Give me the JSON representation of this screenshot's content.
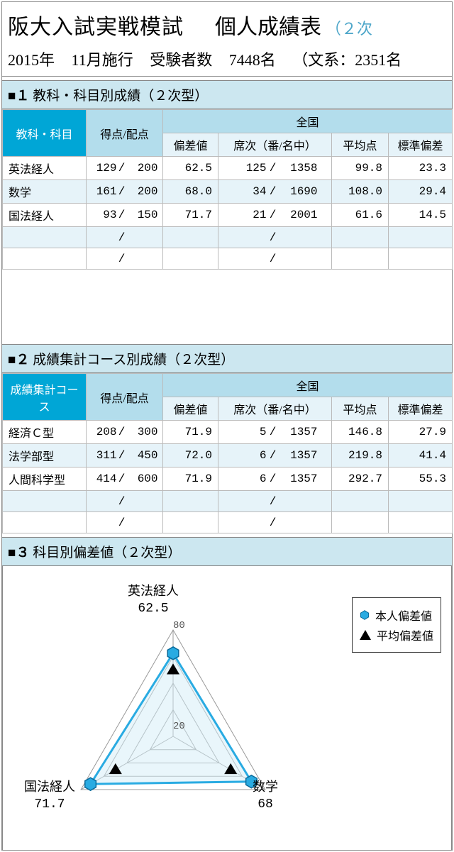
{
  "header": {
    "title_main": "阪大入試実戦模試",
    "title_sub": "個人成績表",
    "title_tail": "（２次",
    "year": "2015年",
    "month": "11月施行",
    "examinees_label": "受験者数",
    "examinees_count": "7448名",
    "breakdown": "（文系：2351名"
  },
  "section1": {
    "number": "■１",
    "title": "教科・科目別成績（２次型）",
    "headers": {
      "subject": "教科・科目",
      "score": "得点/配点",
      "national": "全国",
      "dev": "偏差値",
      "rank": "席次（番/名中）",
      "avg": "平均点",
      "sd": "標準偏差"
    },
    "rows": [
      {
        "subj": "英法経人",
        "score": "129",
        "full": "200",
        "dev": "62.5",
        "rank": "125",
        "total": "1358",
        "avg": "99.8",
        "sd": "23.3"
      },
      {
        "subj": "数学",
        "score": "161",
        "full": "200",
        "dev": "68.0",
        "rank": "34",
        "total": "1690",
        "avg": "108.0",
        "sd": "29.4"
      },
      {
        "subj": "国法経人",
        "score": "93",
        "full": "150",
        "dev": "71.7",
        "rank": "21",
        "total": "2001",
        "avg": "61.6",
        "sd": "14.5"
      }
    ]
  },
  "section2": {
    "number": "■２",
    "title": "成績集計コース別成績（２次型）",
    "headers": {
      "course": "成績集計コース",
      "score": "得点/配点",
      "national": "全国",
      "dev": "偏差値",
      "rank": "席次（番/名中）",
      "avg": "平均点",
      "sd": "標準偏差"
    },
    "rows": [
      {
        "subj": "経済Ｃ型",
        "score": "208",
        "full": "300",
        "dev": "71.9",
        "rank": "5",
        "total": "1357",
        "avg": "146.8",
        "sd": "27.9"
      },
      {
        "subj": "法学部型",
        "score": "311",
        "full": "450",
        "dev": "72.0",
        "rank": "6",
        "total": "1357",
        "avg": "219.8",
        "sd": "41.4"
      },
      {
        "subj": "人間科学型",
        "score": "414",
        "full": "600",
        "dev": "71.9",
        "rank": "6",
        "total": "1357",
        "avg": "292.7",
        "sd": "55.3"
      }
    ]
  },
  "section3": {
    "number": "■３",
    "title": "科目別偏差値（２次型）",
    "legend": {
      "self": "本人偏差値",
      "avg": "平均偏差値"
    },
    "radar": {
      "type": "radar",
      "max": 80,
      "ticks": [
        20,
        40,
        60,
        80
      ],
      "visible_ticks": [
        "80",
        "20"
      ],
      "axes": [
        {
          "label": "英法経人",
          "value": 62.5,
          "avg": 50,
          "pos": "top"
        },
        {
          "label": "数学",
          "value": 68.0,
          "avg": 50,
          "pos": "right"
        },
        {
          "label": "国法経人",
          "value": 71.7,
          "avg": 50,
          "pos": "left"
        }
      ],
      "colors": {
        "self_line": "#29abe2",
        "self_fill": "#d4edf7",
        "self_marker": "#29abe2",
        "avg_marker": "#000000",
        "grid": "#999999"
      }
    }
  }
}
